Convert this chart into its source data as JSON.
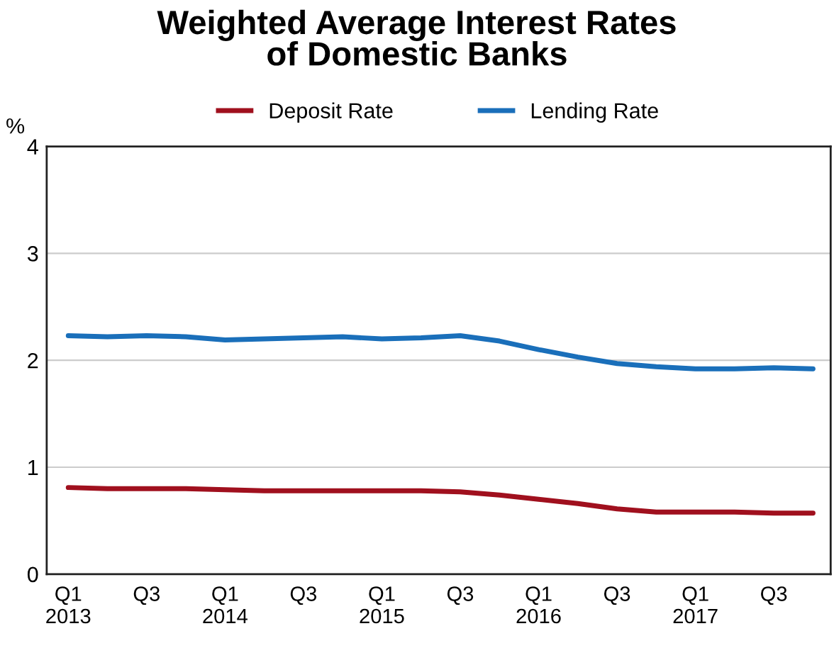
{
  "chart_data": {
    "type": "line",
    "title": "Weighted Average Interest Rates\nof Domestic Banks",
    "ylabel": "%",
    "categories": [
      "Q1\n2013",
      null,
      "Q3",
      null,
      "Q1\n2014",
      null,
      "Q3",
      null,
      "Q1\n2015",
      null,
      "Q3",
      null,
      "Q1\n2016",
      null,
      "Q3",
      null,
      "Q1\n2017",
      null,
      "Q3",
      null
    ],
    "series": [
      {
        "name": "Deposit Rate",
        "color": "#a0101e",
        "values": [
          0.81,
          0.8,
          0.8,
          0.8,
          0.79,
          0.78,
          0.78,
          0.78,
          0.78,
          0.78,
          0.77,
          0.74,
          0.7,
          0.66,
          0.61,
          0.58,
          0.58,
          0.58,
          0.57,
          0.57
        ]
      },
      {
        "name": "Lending Rate",
        "color": "#1a6fba",
        "values": [
          2.23,
          2.22,
          2.23,
          2.22,
          2.19,
          2.2,
          2.21,
          2.22,
          2.2,
          2.21,
          2.23,
          2.18,
          2.1,
          2.03,
          1.97,
          1.94,
          1.92,
          1.92,
          1.93,
          1.92
        ]
      }
    ],
    "ylim": [
      0,
      4
    ],
    "yticks": [
      0,
      1,
      2,
      3,
      4
    ],
    "grid": "y",
    "legend": "top",
    "marker": "none",
    "line_style": "solid"
  }
}
